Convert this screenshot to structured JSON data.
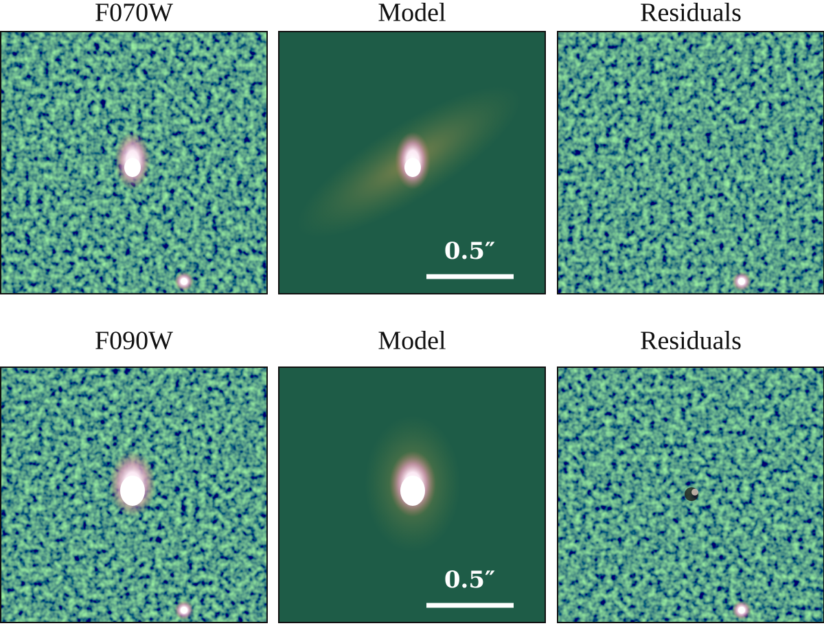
{
  "rows": [
    {
      "panels": [
        {
          "title": "F070W"
        },
        {
          "title": "Model",
          "scale_bar": "0.5″"
        },
        {
          "title": "Residuals"
        }
      ]
    },
    {
      "panels": [
        {
          "title": "F090W"
        },
        {
          "title": "Model",
          "scale_bar": "0.5″"
        },
        {
          "title": "Residuals"
        }
      ]
    }
  ]
}
